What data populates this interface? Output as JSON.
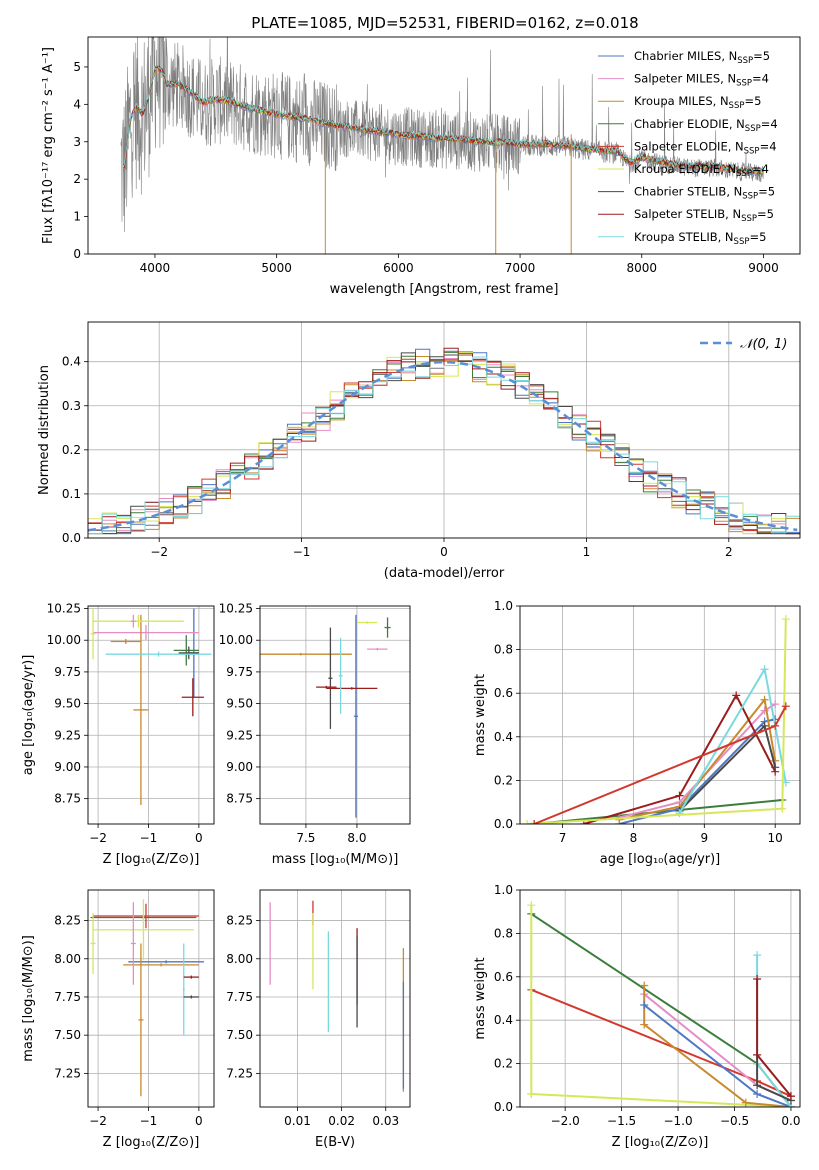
{
  "figure_title": "PLATE=1085, MJD=52531, FIBERID=0162, z=0.018",
  "colors": [
    "#4e77c4",
    "#e58ec6",
    "#c88a2e",
    "#3c7d3c",
    "#d2382d",
    "#d6e75a",
    "#4a4a4a",
    "#9b1c1c",
    "#79d9df"
  ],
  "chart_data": [
    {
      "id": "spectrum",
      "type": "line",
      "xlabel": "wavelength [Angstrom, rest frame]",
      "ylabel": "Flux [fλ10⁻¹⁷ erg cm⁻² s⁻¹ A⁻¹]",
      "xlim": [
        3450,
        9300
      ],
      "ylim": [
        0,
        5.8
      ],
      "xticks": [
        "4000",
        "5000",
        "6000",
        "7000",
        "8000",
        "9000"
      ],
      "yticks": [
        "0",
        "1",
        "2",
        "3",
        "4",
        "5"
      ],
      "legend_position": "top-right",
      "legend": [
        {
          "label": "Chabrier MILES, N",
          "sub": "SSP",
          "suffix": "=5"
        },
        {
          "label": "Salpeter MILES, N",
          "sub": "SSP",
          "suffix": "=4"
        },
        {
          "label": "Kroupa MILES, N",
          "sub": "SSP",
          "suffix": "=5"
        },
        {
          "label": "Chabrier ELODIE, N",
          "sub": "SSP",
          "suffix": "=4"
        },
        {
          "label": "Salpeter ELODIE, N",
          "sub": "SSP",
          "suffix": "=4"
        },
        {
          "label": "Kroupa ELODIE, N",
          "sub": "SSP",
          "suffix": "=4"
        },
        {
          "label": "Chabrier STELIB, N",
          "sub": "SSP",
          "suffix": "=5"
        },
        {
          "label": "Salpeter STELIB, N",
          "sub": "SSP",
          "suffix": "=5"
        },
        {
          "label": "Kroupa STELIB, N",
          "sub": "SSP",
          "suffix": "=5"
        }
      ],
      "model_continuum": [
        [
          3750,
          2.3
        ],
        [
          3800,
          3.6
        ],
        [
          3850,
          3.9
        ],
        [
          3900,
          3.7
        ],
        [
          3950,
          4.2
        ],
        [
          4000,
          4.9
        ],
        [
          4050,
          4.9
        ],
        [
          4100,
          4.5
        ],
        [
          4200,
          4.5
        ],
        [
          4300,
          4.25
        ],
        [
          4400,
          4.0
        ],
        [
          4500,
          4.1
        ],
        [
          4600,
          4.05
        ],
        [
          4800,
          3.85
        ],
        [
          5000,
          3.7
        ],
        [
          5200,
          3.6
        ],
        [
          5400,
          3.45
        ],
        [
          5600,
          3.35
        ],
        [
          5800,
          3.25
        ],
        [
          6000,
          3.15
        ],
        [
          6200,
          3.1
        ],
        [
          6400,
          3.05
        ],
        [
          6600,
          3.0
        ],
        [
          6800,
          2.95
        ],
        [
          7000,
          2.9
        ],
        [
          7200,
          2.9
        ],
        [
          7400,
          2.85
        ],
        [
          7600,
          2.75
        ],
        [
          7800,
          2.7
        ],
        [
          7900,
          2.4
        ],
        [
          8000,
          2.55
        ],
        [
          8200,
          2.4
        ],
        [
          8400,
          2.3
        ],
        [
          8600,
          2.3
        ],
        [
          8800,
          2.2
        ],
        [
          9000,
          2.15
        ]
      ],
      "observed_range": [
        3720,
        9000
      ]
    },
    {
      "id": "residuals",
      "type": "histogram",
      "xlabel": "(data-model)/error",
      "ylabel": "Normed distribution",
      "xlim": [
        -2.5,
        2.5
      ],
      "ylim": [
        0,
        0.49
      ],
      "xticks": [
        "−2",
        "−1",
        "0",
        "1",
        "2"
      ],
      "yticks": [
        "0.0",
        "0.1",
        "0.2",
        "0.3",
        "0.4"
      ],
      "grid": true,
      "legend_position": "top-right",
      "legend_label": "𝒩(0, 1)",
      "bin_width": 0.1
    },
    {
      "id": "age-vs-Z",
      "type": "errorbar",
      "xlabel": "Z [log₁₀(Z/Z⊙)]",
      "ylabel": "age  [log₁₀(age/yr)]",
      "xlim": [
        -2.2,
        0.3
      ],
      "ylim": [
        8.55,
        10.27
      ],
      "xticks": [
        "−2",
        "−1",
        "0"
      ],
      "yticks": [
        "8.75",
        "9.00",
        "9.25",
        "9.50",
        "9.75",
        "10.00",
        "10.25"
      ],
      "grid": true,
      "points": [
        {
          "series": 0,
          "x": -0.1,
          "xerr": 0.1,
          "y": 9.9,
          "yerr": 0.35
        },
        {
          "series": 1,
          "x": -1.05,
          "xerr": 1.05,
          "y": 10.06,
          "yerr": 0.06
        },
        {
          "series": 2,
          "x": -1.15,
          "xerr": 0.15,
          "y": 9.45,
          "yerr": 0.75
        },
        {
          "series": 3,
          "x": -0.25,
          "xerr": 0.25,
          "y": 9.92,
          "yerr": 0.12
        },
        {
          "series": 5,
          "x": -1.2,
          "xerr": 0.9,
          "y": 10.15,
          "yerr": 0.05
        },
        {
          "series": 6,
          "x": -0.2,
          "xerr": 0.2,
          "y": 9.9,
          "yerr": 0.05
        },
        {
          "series": 7,
          "x": -0.12,
          "xerr": 0.22,
          "y": 9.55,
          "yerr": 0.15
        },
        {
          "series": 8,
          "x": -0.8,
          "xerr": 1.05,
          "y": 9.89,
          "yerr": 0.02
        },
        {
          "series": 1,
          "x": -1.3,
          "xerr": 0.05,
          "y": 10.15,
          "yerr": 0.05
        },
        {
          "series": 2,
          "x": -1.45,
          "xerr": 0.3,
          "y": 9.99,
          "yerr": 0.02
        },
        {
          "series": 5,
          "x": -2.1,
          "xerr": 0.05,
          "y": 10.05,
          "yerr": 0.2
        }
      ]
    },
    {
      "id": "age-vs-mass",
      "type": "errorbar",
      "xlabel": "mass [log₁₀(M/M⊙)]",
      "ylabel": "",
      "xlim": [
        7.05,
        8.52
      ],
      "ylim": [
        8.55,
        10.27
      ],
      "xticks": [
        "7.5",
        "8.0"
      ],
      "yticks": [
        "8.75",
        "9.00",
        "9.25",
        "9.50",
        "9.75",
        "10.00",
        "10.25"
      ],
      "grid": true,
      "points": [
        {
          "series": 0,
          "x": 7.99,
          "xerr": 0.02,
          "y": 9.4,
          "yerr": 0.8
        },
        {
          "series": 2,
          "x": 7.45,
          "xerr": 0.5,
          "y": 9.89,
          "yerr": 0.01
        },
        {
          "series": 6,
          "x": 7.74,
          "xerr": 0.02,
          "y": 9.7,
          "yerr": 0.4
        },
        {
          "series": 7,
          "x": 7.95,
          "xerr": 0.25,
          "y": 9.62,
          "yerr": 0.01
        },
        {
          "series": 8,
          "x": 7.84,
          "xerr": 0.02,
          "y": 9.72,
          "yerr": 0.3
        },
        {
          "series": 5,
          "x": 8.1,
          "xerr": 0.1,
          "y": 10.14,
          "yerr": 0.01
        },
        {
          "series": 1,
          "x": 8.2,
          "xerr": 0.1,
          "y": 9.93,
          "yerr": 0.01
        },
        {
          "series": 3,
          "x": 8.3,
          "xerr": 0.03,
          "y": 10.1,
          "yerr": 0.08
        },
        {
          "series": 7,
          "x": 7.7,
          "xerr": 0.1,
          "y": 9.63,
          "yerr": 0.01
        }
      ]
    },
    {
      "id": "weight-vs-age",
      "type": "line",
      "xlabel": "age  [log₁₀(age/yr)]",
      "ylabel": "mass weight",
      "xlim": [
        6.4,
        10.35
      ],
      "ylim": [
        0,
        1.0
      ],
      "xticks": [
        "7",
        "8",
        "9",
        "10"
      ],
      "yticks": [
        "0.0",
        "0.2",
        "0.4",
        "0.6",
        "0.8",
        "1.0"
      ],
      "grid": true,
      "series": [
        {
          "series": 3,
          "x": [
            6.6,
            10.1
          ],
          "y": [
            0.0,
            0.11
          ]
        },
        {
          "series": 0,
          "x": [
            7.8,
            8.65,
            9.85,
            10.0
          ],
          "y": [
            0.0,
            0.07,
            0.47,
            0.48
          ]
        },
        {
          "series": 1,
          "x": [
            7.8,
            8.65,
            9.85,
            10.0
          ],
          "y": [
            0.03,
            0.1,
            0.52,
            0.55
          ]
        },
        {
          "series": 2,
          "x": [
            7.8,
            8.65,
            9.85,
            10.0
          ],
          "y": [
            0.02,
            0.08,
            0.57,
            0.29
          ]
        },
        {
          "series": 7,
          "x": [
            7.3,
            8.65,
            9.45,
            10.0
          ],
          "y": [
            0.0,
            0.13,
            0.59,
            0.24
          ]
        },
        {
          "series": 6,
          "x": [
            8.65,
            9.85,
            10.0
          ],
          "y": [
            0.06,
            0.45,
            0.26
          ]
        },
        {
          "series": 8,
          "x": [
            8.65,
            9.85,
            10.15
          ],
          "y": [
            0.05,
            0.71,
            0.19
          ]
        },
        {
          "series": 5,
          "x": [
            6.5,
            10.1,
            10.15
          ],
          "y": [
            0.0,
            0.07,
            0.94
          ]
        },
        {
          "series": 4,
          "x": [
            6.6,
            10.0,
            10.15
          ],
          "y": [
            0.0,
            0.45,
            0.54
          ]
        }
      ]
    },
    {
      "id": "mass-vs-Z",
      "type": "errorbar",
      "xlabel": "Z [log₁₀(Z/Z⊙)]",
      "ylabel": "mass [log₁₀(M/M⊙)]",
      "xlim": [
        -2.2,
        0.3
      ],
      "ylim": [
        7.03,
        8.45
      ],
      "xticks": [
        "−2",
        "−1",
        "0"
      ],
      "yticks": [
        "7.25",
        "7.50",
        "7.75",
        "8.00",
        "8.25"
      ],
      "grid": true,
      "points": [
        {
          "series": 4,
          "x": -1.05,
          "xerr": 1.05,
          "y": 8.28,
          "yerr": 0.08
        },
        {
          "series": 3,
          "x": -1.1,
          "xerr": 1.05,
          "y": 8.27,
          "yerr": 0.01
        },
        {
          "series": 5,
          "x": -1.1,
          "xerr": 1.0,
          "y": 8.19,
          "yerr": 0.2
        },
        {
          "series": 0,
          "x": -0.65,
          "xerr": 0.75,
          "y": 7.98,
          "yerr": 0.01
        },
        {
          "series": 2,
          "x": -0.75,
          "xerr": 0.75,
          "y": 7.96,
          "yerr": 0.01
        },
        {
          "series": 1,
          "x": -1.3,
          "xerr": 0.05,
          "y": 8.1,
          "yerr": 0.27
        },
        {
          "series": 2,
          "x": -1.15,
          "xerr": 0.05,
          "y": 7.6,
          "yerr": 0.5
        },
        {
          "series": 8,
          "x": -0.3,
          "xerr": 0.02,
          "y": 7.8,
          "yerr": 0.3
        },
        {
          "series": 7,
          "x": -0.15,
          "xerr": 0.15,
          "y": 7.88,
          "yerr": 0.01
        },
        {
          "series": 6,
          "x": -0.15,
          "xerr": 0.15,
          "y": 7.75,
          "yerr": 0.01
        },
        {
          "series": 5,
          "x": -2.1,
          "xerr": 0.05,
          "y": 8.1,
          "yerr": 0.2
        }
      ]
    },
    {
      "id": "mass-vs-ebv",
      "type": "errorbar",
      "xlabel": "E(B-V)",
      "ylabel": "",
      "xlim": [
        0.0015,
        0.0355
      ],
      "ylim": [
        7.03,
        8.45
      ],
      "xticks": [
        "0.01",
        "0.02",
        "0.03"
      ],
      "yticks": [
        "7.25",
        "7.50",
        "7.75",
        "8.00",
        "8.25"
      ],
      "grid": true,
      "points": [
        {
          "series": 1,
          "x": 0.0038,
          "xerr": 0,
          "y": 8.1,
          "yerr": 0.27
        },
        {
          "series": 4,
          "x": 0.0135,
          "xerr": 0,
          "y": 8.3,
          "yerr": 0.08
        },
        {
          "series": 5,
          "x": 0.0135,
          "xerr": 0,
          "y": 8.05,
          "yerr": 0.25
        },
        {
          "series": 8,
          "x": 0.017,
          "xerr": 0,
          "y": 7.85,
          "yerr": 0.33
        },
        {
          "series": 7,
          "x": 0.0235,
          "xerr": 0,
          "y": 7.95,
          "yerr": 0.25
        },
        {
          "series": 6,
          "x": 0.0235,
          "xerr": 0,
          "y": 7.85,
          "yerr": 0.3
        },
        {
          "series": 2,
          "x": 0.034,
          "xerr": 0,
          "y": 7.6,
          "yerr": 0.47
        },
        {
          "series": 0,
          "x": 0.034,
          "xerr": 0,
          "y": 7.5,
          "yerr": 0.35
        }
      ]
    },
    {
      "id": "weight-vs-Z",
      "type": "line",
      "xlabel": "Z [log₁₀(Z/Z⊙)]",
      "ylabel": "mass weight",
      "xlim": [
        -2.4,
        0.08
      ],
      "ylim": [
        0,
        1.0
      ],
      "xticks": [
        "−2.0",
        "−1.5",
        "−1.0",
        "−0.5",
        "0.0"
      ],
      "yticks": [
        "0.0",
        "0.2",
        "0.4",
        "0.6",
        "0.8",
        "1.0"
      ],
      "grid": true,
      "series": [
        {
          "series": 3,
          "x": [
            -2.3,
            -0.3,
            0.0
          ],
          "y": [
            0.89,
            0.2,
            0.0
          ]
        },
        {
          "series": 4,
          "x": [
            -2.3,
            -0.3,
            0.0
          ],
          "y": [
            0.54,
            0.12,
            0.05
          ]
        },
        {
          "series": 5,
          "x": [
            -2.3,
            0.0
          ],
          "y": [
            0.06,
            0.0
          ]
        },
        {
          "series": 5,
          "x": [
            -2.3,
            -2.3
          ],
          "y": [
            0.06,
            0.93
          ]
        },
        {
          "series": 1,
          "x": [
            -1.3,
            -0.3,
            0.0
          ],
          "y": [
            0.52,
            0.1,
            0.03
          ]
        },
        {
          "series": 2,
          "x": [
            -1.3,
            -1.3,
            -0.4,
            0.0
          ],
          "y": [
            0.56,
            0.38,
            0.02,
            0.0
          ]
        },
        {
          "series": 0,
          "x": [
            -1.3,
            -0.3,
            0.0
          ],
          "y": [
            0.47,
            0.06,
            0.0
          ]
        },
        {
          "series": 8,
          "x": [
            -0.3,
            -0.3,
            0.0
          ],
          "y": [
            0.7,
            0.2,
            0.0
          ]
        },
        {
          "series": 6,
          "x": [
            -0.3,
            -0.3,
            0.0
          ],
          "y": [
            0.24,
            0.1,
            0.03
          ]
        },
        {
          "series": 7,
          "x": [
            -0.3,
            -0.3,
            0.0
          ],
          "y": [
            0.59,
            0.24,
            0.05
          ]
        }
      ]
    }
  ]
}
